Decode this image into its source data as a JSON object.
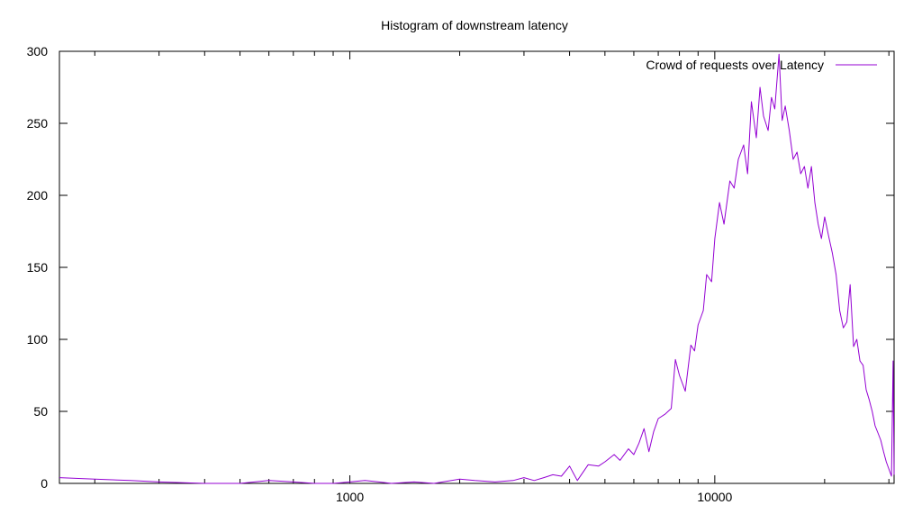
{
  "chart_data": {
    "type": "line",
    "title": "Histogram of downstream latency",
    "xlabel": "",
    "ylabel": "",
    "xscale": "log",
    "xlim": [
      160,
      31000
    ],
    "ylim": [
      0,
      300
    ],
    "grid": false,
    "legend_position": "top-right",
    "colors": {
      "series": "#9400d3",
      "axes": "#000000"
    },
    "x_ticks": [
      {
        "value": 1000,
        "label": "1000"
      },
      {
        "value": 10000,
        "label": "10000"
      }
    ],
    "x_minor_ticks": [
      200,
      300,
      400,
      500,
      600,
      700,
      800,
      900,
      2000,
      3000,
      4000,
      5000,
      6000,
      7000,
      8000,
      9000,
      20000,
      30000
    ],
    "y_ticks": [
      {
        "value": 0,
        "label": "0"
      },
      {
        "value": 50,
        "label": "50"
      },
      {
        "value": 100,
        "label": "100"
      },
      {
        "value": 150,
        "label": "150"
      },
      {
        "value": 200,
        "label": "200"
      },
      {
        "value": 250,
        "label": "250"
      },
      {
        "value": 300,
        "label": "300"
      }
    ],
    "series": [
      {
        "name": "Crowd of requests over Latency",
        "x": [
          160,
          200,
          250,
          300,
          400,
          500,
          600,
          700,
          800,
          900,
          1000,
          1100,
          1200,
          1300,
          1500,
          1700,
          2000,
          2200,
          2500,
          2800,
          3000,
          3200,
          3400,
          3600,
          3800,
          4000,
          4200,
          4500,
          4800,
          5000,
          5300,
          5500,
          5800,
          6000,
          6200,
          6400,
          6600,
          6800,
          7000,
          7300,
          7600,
          7800,
          8000,
          8300,
          8600,
          8800,
          9000,
          9300,
          9500,
          9800,
          10000,
          10300,
          10600,
          11000,
          11300,
          11600,
          12000,
          12300,
          12600,
          13000,
          13300,
          13600,
          14000,
          14300,
          14600,
          15000,
          15300,
          15600,
          16000,
          16400,
          16800,
          17200,
          17600,
          18000,
          18400,
          18800,
          19200,
          19600,
          20000,
          20500,
          21000,
          21500,
          22000,
          22500,
          23000,
          23500,
          24000,
          24500,
          25000,
          25500,
          26000,
          26500,
          27000,
          27500,
          28000,
          28500,
          29000,
          29500,
          30000,
          30500,
          30800,
          31000
        ],
        "values": [
          4,
          3,
          2,
          1,
          0,
          0,
          2,
          1,
          0,
          0,
          1,
          2,
          1,
          0,
          1,
          0,
          3,
          2,
          1,
          2,
          4,
          2,
          4,
          6,
          5,
          12,
          2,
          13,
          12,
          15,
          20,
          16,
          24,
          20,
          28,
          38,
          22,
          36,
          45,
          48,
          52,
          86,
          75,
          64,
          96,
          92,
          110,
          120,
          145,
          140,
          170,
          195,
          180,
          210,
          205,
          225,
          235,
          215,
          265,
          240,
          275,
          255,
          245,
          268,
          260,
          298,
          252,
          262,
          245,
          225,
          230,
          215,
          220,
          205,
          220,
          195,
          180,
          170,
          185,
          172,
          160,
          145,
          120,
          108,
          112,
          138,
          95,
          100,
          85,
          82,
          65,
          58,
          50,
          40,
          35,
          30,
          22,
          15,
          10,
          5,
          85,
          6
        ]
      }
    ]
  }
}
